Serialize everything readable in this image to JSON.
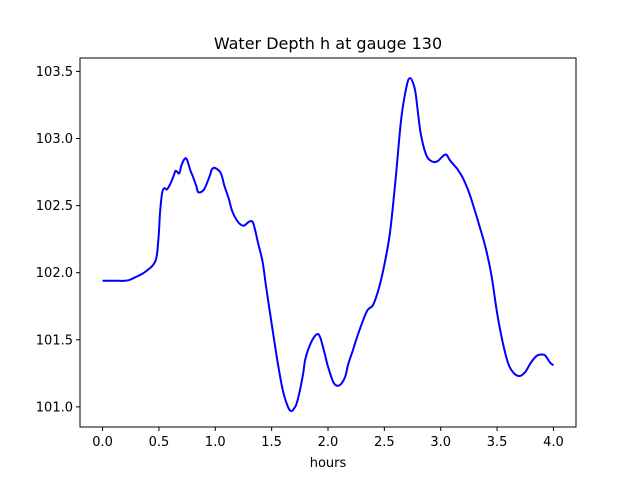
{
  "chart_data": {
    "type": "line",
    "title": "Water Depth h at gauge 130",
    "xlabel": "hours",
    "ylabel": "",
    "xlim": [
      -0.2,
      4.2
    ],
    "ylim": [
      100.85,
      103.6
    ],
    "xticks": [
      0.0,
      0.5,
      1.0,
      1.5,
      2.0,
      2.5,
      3.0,
      3.5,
      4.0
    ],
    "xtick_labels": [
      "0.0",
      "0.5",
      "1.0",
      "1.5",
      "2.0",
      "2.5",
      "3.0",
      "3.5",
      "4.0"
    ],
    "yticks": [
      101.0,
      101.5,
      102.0,
      102.5,
      103.0,
      103.5
    ],
    "ytick_labels": [
      "101.0",
      "101.5",
      "102.0",
      "102.5",
      "103.0",
      "103.5"
    ],
    "grid": false,
    "legend": "none",
    "series": [
      {
        "color": "#0000ff",
        "x": [
          0.0,
          0.1,
          0.2,
          0.25,
          0.3,
          0.35,
          0.4,
          0.45,
          0.48,
          0.5,
          0.51,
          0.53,
          0.55,
          0.57,
          0.6,
          0.63,
          0.65,
          0.68,
          0.7,
          0.73,
          0.75,
          0.78,
          0.8,
          0.83,
          0.85,
          0.9,
          0.95,
          0.97,
          1.0,
          1.05,
          1.08,
          1.12,
          1.15,
          1.2,
          1.25,
          1.3,
          1.33,
          1.35,
          1.38,
          1.42,
          1.45,
          1.5,
          1.55,
          1.6,
          1.65,
          1.68,
          1.7,
          1.72,
          1.75,
          1.78,
          1.8,
          1.85,
          1.9,
          1.93,
          1.97,
          2.0,
          2.05,
          2.1,
          2.15,
          2.18,
          2.22,
          2.25,
          2.3,
          2.35,
          2.4,
          2.45,
          2.5,
          2.55,
          2.6,
          2.65,
          2.7,
          2.73,
          2.76,
          2.78,
          2.82,
          2.87,
          2.92,
          2.97,
          3.02,
          3.05,
          3.08,
          3.12,
          3.15,
          3.2,
          3.25,
          3.3,
          3.35,
          3.4,
          3.45,
          3.5,
          3.55,
          3.6,
          3.65,
          3.7,
          3.75,
          3.8,
          3.85,
          3.9,
          3.93,
          3.97,
          4.0
        ],
        "y": [
          101.94,
          101.94,
          101.94,
          101.95,
          101.97,
          101.99,
          102.02,
          102.06,
          102.12,
          102.3,
          102.45,
          102.6,
          102.63,
          102.62,
          102.66,
          102.72,
          102.76,
          102.74,
          102.8,
          102.85,
          102.84,
          102.76,
          102.72,
          102.65,
          102.6,
          102.62,
          102.72,
          102.77,
          102.78,
          102.74,
          102.65,
          102.55,
          102.46,
          102.38,
          102.35,
          102.38,
          102.38,
          102.33,
          102.22,
          102.08,
          101.9,
          101.62,
          101.35,
          101.12,
          100.99,
          100.97,
          100.99,
          101.02,
          101.12,
          101.25,
          101.36,
          101.48,
          101.54,
          101.52,
          101.4,
          101.3,
          101.18,
          101.16,
          101.22,
          101.32,
          101.42,
          101.5,
          101.62,
          101.72,
          101.76,
          101.88,
          102.06,
          102.3,
          102.7,
          103.15,
          103.4,
          103.45,
          103.4,
          103.32,
          103.05,
          102.88,
          102.83,
          102.83,
          102.87,
          102.88,
          102.84,
          102.8,
          102.77,
          102.7,
          102.6,
          102.47,
          102.33,
          102.18,
          101.98,
          101.7,
          101.48,
          101.32,
          101.25,
          101.23,
          101.26,
          101.33,
          101.38,
          101.39,
          101.38,
          101.33,
          101.31
        ]
      }
    ]
  }
}
